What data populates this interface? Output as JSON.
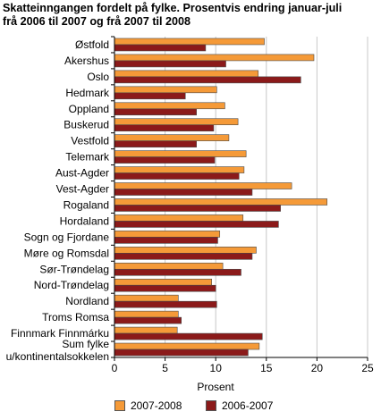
{
  "chart_data": {
    "type": "bar",
    "orientation": "horizontal",
    "title_lines": [
      "Skatteinngangen fordelt på fylke. Prosentvis endring januar-juli",
      "frå 2006 til 2007 og frå 2007 til 2008"
    ],
    "xlabel": "Prosent",
    "ylabel": "",
    "xlim": [
      0,
      25
    ],
    "xticks": [
      0,
      5,
      10,
      15,
      20,
      25
    ],
    "grid": "vertical",
    "legend_position": "bottom",
    "categories": [
      [
        "Østfold"
      ],
      [
        "Akershus"
      ],
      [
        "Oslo"
      ],
      [
        "Hedmark"
      ],
      [
        "Oppland"
      ],
      [
        "Buskerud"
      ],
      [
        "Vestfold"
      ],
      [
        "Telemark"
      ],
      [
        "Aust-Agder"
      ],
      [
        "Vest-Agder"
      ],
      [
        "Rogaland"
      ],
      [
        "Hordaland"
      ],
      [
        "Sogn og Fjordane"
      ],
      [
        "Møre og Romsdal"
      ],
      [
        "Sør-Trøndelag"
      ],
      [
        "Nord-Trøndelag"
      ],
      [
        "Nordland"
      ],
      [
        "Troms Romsa"
      ],
      [
        "Finnmark Finnmárku"
      ],
      [
        "Sum fylke",
        "u/kontinentalsokkelen"
      ]
    ],
    "series": [
      {
        "name": "2007-2008",
        "color": "#f59a38",
        "values": [
          14.8,
          19.7,
          14.2,
          10.1,
          10.9,
          12.2,
          11.3,
          13.0,
          12.8,
          17.5,
          21.0,
          12.7,
          10.4,
          14.0,
          10.7,
          9.6,
          6.3,
          6.3,
          6.2,
          14.3
        ]
      },
      {
        "name": "2006-2007",
        "color": "#8b1a1a",
        "values": [
          9.0,
          11.0,
          18.4,
          7.0,
          8.1,
          9.8,
          8.1,
          9.9,
          12.3,
          13.6,
          16.4,
          16.2,
          10.2,
          13.6,
          12.5,
          10.0,
          10.1,
          6.6,
          14.6,
          13.2
        ]
      }
    ]
  }
}
